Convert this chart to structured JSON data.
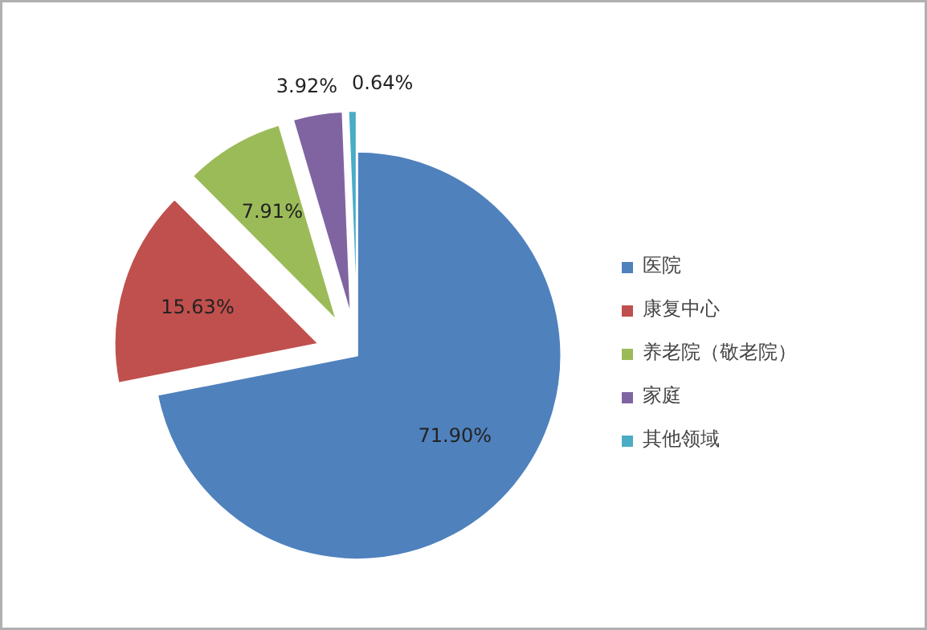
{
  "chart_data": {
    "type": "pie",
    "categories": [
      "医院",
      "康复中心",
      "养老院（敬老院）",
      "家庭",
      "其他领域"
    ],
    "values": [
      71.9,
      15.63,
      7.91,
      3.92,
      0.64
    ],
    "value_labels": [
      "71.90%",
      "15.63%",
      "7.91%",
      "3.92%",
      "0.64%"
    ],
    "colors": [
      "#4f81bd",
      "#c0504d",
      "#9bbb59",
      "#8064a2",
      "#4bacc6"
    ],
    "legend": "right"
  }
}
